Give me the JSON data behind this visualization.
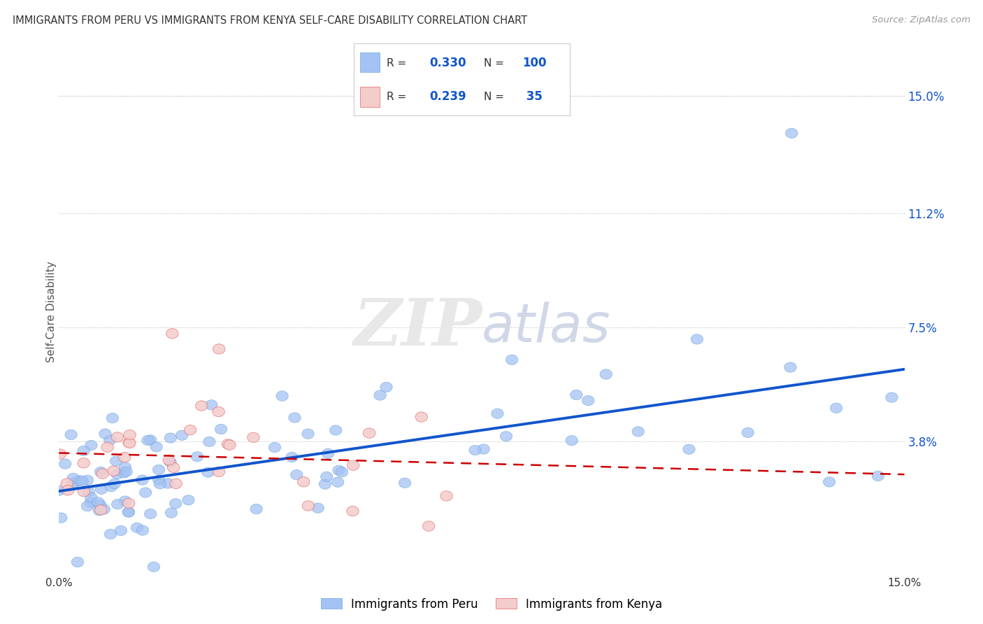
{
  "title": "IMMIGRANTS FROM PERU VS IMMIGRANTS FROM KENYA SELF-CARE DISABILITY CORRELATION CHART",
  "source": "Source: ZipAtlas.com",
  "ylabel": "Self-Care Disability",
  "ytick_labels": [
    "3.8%",
    "7.5%",
    "11.2%",
    "15.0%"
  ],
  "ytick_values": [
    0.038,
    0.075,
    0.112,
    0.15
  ],
  "xlim": [
    0.0,
    0.15
  ],
  "ylim": [
    -0.005,
    0.165
  ],
  "peru_color": "#a4c2f4",
  "peru_edge_color": "#6fa8dc",
  "kenya_color": "#f4cccc",
  "kenya_edge_color": "#e06666",
  "peru_line_color": "#1155cc",
  "kenya_line_color": "#cc0000",
  "peru_R": 0.33,
  "peru_N": 100,
  "kenya_R": 0.239,
  "kenya_N": 35,
  "grid_color": "#b7b7b7",
  "background_color": "#ffffff",
  "legend_box_color": "#ffffff",
  "legend_edge_color": "#cccccc",
  "text_color": "#333333",
  "ytick_color": "#1155cc",
  "source_color": "#999999"
}
